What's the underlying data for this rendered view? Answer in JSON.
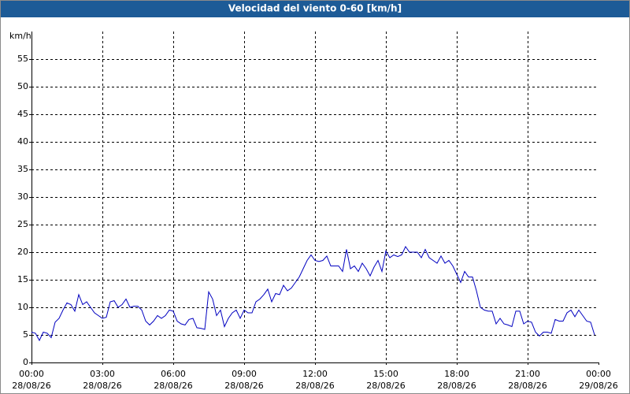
{
  "chart_data": {
    "type": "line",
    "title": "Velocidad del viento 0-60 [km/h]",
    "y_label": "km/h",
    "x": [
      0,
      10,
      20,
      30,
      40,
      50,
      60,
      70,
      80,
      90,
      100,
      110,
      120,
      130,
      140,
      150,
      160,
      170,
      180,
      190,
      200,
      210,
      220,
      230,
      240,
      250,
      260,
      270,
      280,
      290,
      300,
      310,
      320,
      330,
      340,
      350,
      360,
      370,
      380,
      390,
      400,
      410,
      420,
      430,
      440,
      450,
      460,
      470,
      480,
      490,
      500,
      510,
      520,
      530,
      540,
      550,
      560,
      570,
      580,
      590,
      600,
      610,
      620,
      630,
      640,
      650,
      660,
      670,
      680,
      690,
      700,
      710,
      720,
      730,
      740,
      750,
      760,
      770,
      780,
      790,
      800,
      810,
      820,
      830,
      840,
      850,
      860,
      870,
      880,
      890,
      900,
      910,
      920,
      930,
      940,
      950,
      960,
      970,
      980,
      990,
      1000,
      1010,
      1020,
      1030,
      1040,
      1050,
      1060,
      1070,
      1080,
      1090,
      1100,
      1110,
      1120,
      1130,
      1140,
      1150,
      1160,
      1170,
      1180,
      1190,
      1200,
      1210,
      1220,
      1230,
      1240,
      1250,
      1260,
      1270,
      1280,
      1290,
      1300,
      1310,
      1320,
      1330,
      1340,
      1350,
      1360,
      1370,
      1380,
      1390,
      1400,
      1410,
      1420,
      1430
    ],
    "series": [
      {
        "name": "Velocidad del viento",
        "color": "#0000c0",
        "values": [
          5.5,
          5.3,
          4,
          5.5,
          5.3,
          4.5,
          7.3,
          8,
          9.5,
          10.8,
          10.5,
          9.3,
          12.3,
          10.5,
          11,
          10,
          9,
          8.5,
          8,
          8.2,
          11,
          11.2,
          10,
          10.5,
          11.5,
          10,
          10.2,
          10.2,
          9.5,
          7.5,
          6.8,
          7.5,
          8.5,
          8,
          8.5,
          9.5,
          9.3,
          7.5,
          7,
          6.8,
          7.8,
          8,
          6.3,
          6.2,
          6,
          12.8,
          11.5,
          8.5,
          9.5,
          6.5,
          8,
          9,
          9.5,
          8,
          9.5,
          9,
          9,
          11,
          11.5,
          12.3,
          13.3,
          11,
          12.5,
          12.3,
          14,
          13,
          13.5,
          14.5,
          15.5,
          17,
          18.5,
          19.5,
          18.5,
          18.3,
          18.5,
          19.3,
          17.5,
          17.5,
          17.5,
          16.5,
          20.5,
          17,
          17.5,
          16.5,
          18,
          17,
          15.7,
          17.3,
          18.5,
          16.5,
          20.2,
          19,
          19.5,
          19.2,
          19.5,
          21,
          20,
          20,
          20,
          19,
          20.5,
          19,
          18.5,
          18,
          19.3,
          18,
          18.5,
          17.5,
          16,
          14.5,
          16.5,
          15.5,
          15.5,
          13,
          10,
          9.5,
          9.3,
          9.3,
          7,
          8,
          7,
          6.8,
          6.5,
          9.3,
          9.3,
          7,
          7.5,
          7.3,
          5.5,
          4.8,
          5.5,
          5.5,
          5.3,
          7.8,
          7.5,
          7.5,
          9,
          9.5,
          8.3,
          9.5,
          8.5,
          7.5,
          7.3,
          5
        ]
      }
    ],
    "xlim": [
      0,
      1440
    ],
    "xticks": [
      {
        "value": 0,
        "label": "00:00"
      },
      {
        "value": 180,
        "label": "03:00"
      },
      {
        "value": 360,
        "label": "06:00"
      },
      {
        "value": 540,
        "label": "09:00"
      },
      {
        "value": 720,
        "label": "12:00"
      },
      {
        "value": 900,
        "label": "15:00"
      },
      {
        "value": 1080,
        "label": "18:00"
      },
      {
        "value": 1260,
        "label": "21:00"
      },
      {
        "value": 1440,
        "label": "00:00"
      }
    ],
    "xtick_dates": [
      "28/08/26",
      "28/08/26",
      "28/08/26",
      "28/08/26",
      "28/08/26",
      "28/08/26",
      "28/08/26",
      "28/08/26",
      "29/08/26"
    ],
    "ylim": [
      0,
      60
    ],
    "yticks": [
      0,
      5,
      10,
      15,
      20,
      25,
      30,
      35,
      40,
      45,
      50,
      55
    ],
    "grid": true
  }
}
